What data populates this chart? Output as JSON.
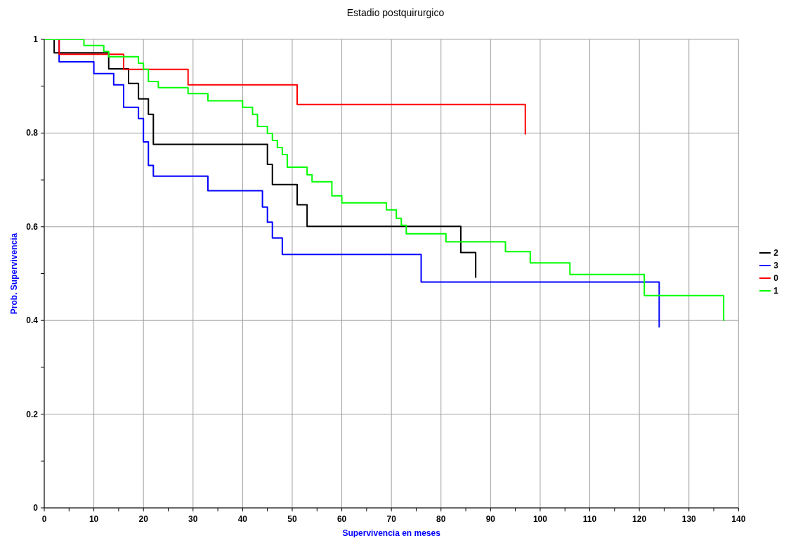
{
  "chart_data": {
    "type": "step",
    "title": "Estadio postquirurgico",
    "xlabel": "Supervivencia en meses",
    "ylabel": "Prob. Supervivencia",
    "xlim": [
      0,
      140
    ],
    "ylim": [
      0,
      1
    ],
    "xticks": [
      0,
      {
        "value": 5,
        "label": null
      },
      10,
      {
        "value": 15,
        "label": null
      },
      20,
      {
        "value": 25,
        "label": null
      },
      30,
      {
        "value": 35,
        "label": null
      },
      40,
      {
        "value": 45,
        "label": null
      },
      50,
      {
        "value": 55,
        "label": null
      },
      60,
      {
        "value": 65,
        "label": null
      },
      70,
      {
        "value": 75,
        "label": null
      },
      80,
      {
        "value": 85,
        "label": null
      },
      90,
      {
        "value": 95,
        "label": null
      },
      100,
      {
        "value": 105,
        "label": null
      },
      110,
      {
        "value": 115,
        "label": null
      },
      120,
      {
        "value": 125,
        "label": null
      },
      130,
      {
        "value": 135,
        "label": null
      },
      140
    ],
    "yticks": [
      0,
      {
        "value": 0.1,
        "label": null
      },
      0.2,
      {
        "value": 0.3,
        "label": null
      },
      0.4,
      {
        "value": 0.5,
        "label": null
      },
      0.6,
      {
        "value": 0.7,
        "label": null
      },
      0.8,
      {
        "value": 0.9,
        "label": null
      },
      1
    ],
    "grid": true,
    "legend": "right",
    "marker": "none",
    "line_style": "solid",
    "series": [
      {
        "name": "2",
        "color": "#000000",
        "x": [
          0,
          2,
          13,
          17,
          19,
          21,
          22,
          45,
          46,
          51,
          53,
          84,
          87
        ],
        "values": [
          1,
          0.971,
          0.937,
          0.906,
          0.873,
          0.84,
          0.776,
          0.733,
          0.69,
          0.647,
          0.601,
          0.545,
          0.491
        ]
      },
      {
        "name": "3",
        "color": "#0000ff",
        "x": [
          0,
          3,
          10,
          14,
          16,
          19,
          20,
          21,
          22,
          33,
          44,
          45,
          46,
          48,
          76,
          124
        ],
        "values": [
          1,
          0.952,
          0.927,
          0.903,
          0.855,
          0.831,
          0.781,
          0.731,
          0.708,
          0.677,
          0.642,
          0.61,
          0.576,
          0.541,
          0.482,
          0.385
        ]
      },
      {
        "name": "0",
        "color": "#ff0000",
        "x": [
          0,
          3,
          16,
          29,
          51,
          97
        ],
        "values": [
          1,
          0.968,
          0.936,
          0.903,
          0.861,
          0.797
        ]
      },
      {
        "name": "1",
        "color": "#00ff00",
        "x": [
          0,
          8,
          12,
          13,
          19,
          20,
          21,
          23,
          29,
          33,
          40,
          42,
          43,
          45,
          46,
          47,
          48,
          49,
          53,
          54,
          58,
          60,
          69,
          71,
          72,
          73,
          81,
          93,
          98,
          106,
          121,
          137
        ],
        "values": [
          1,
          0.987,
          0.974,
          0.963,
          0.949,
          0.936,
          0.91,
          0.897,
          0.884,
          0.869,
          0.855,
          0.84,
          0.814,
          0.799,
          0.784,
          0.769,
          0.754,
          0.727,
          0.711,
          0.696,
          0.666,
          0.651,
          0.636,
          0.618,
          0.603,
          0.585,
          0.568,
          0.547,
          0.523,
          0.498,
          0.453,
          0.399
        ]
      }
    ]
  }
}
